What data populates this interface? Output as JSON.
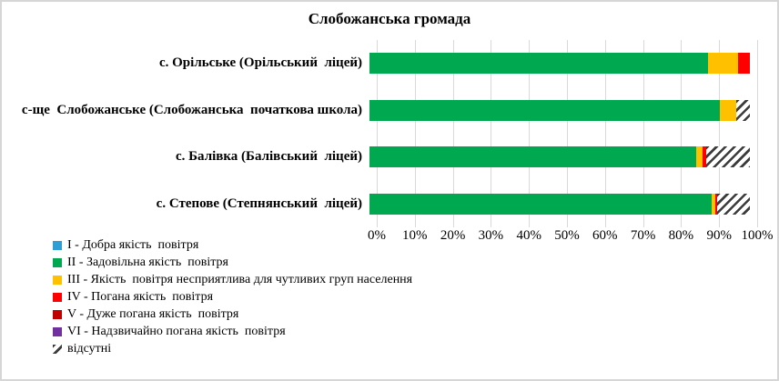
{
  "chart_data": {
    "type": "bar",
    "orientation": "horizontal",
    "stacked": true,
    "title": "Слобожанська громада",
    "categories": [
      "с. Орільське (Орільський  ліцей)",
      "с-ще  Слобожанське (Слобожанська  початкова школа)",
      "с. Балівка (Балівський  ліцей)",
      "с. Степове (Степнянський  ліцей)"
    ],
    "series": [
      {
        "name": "I - Добра якість  повітря",
        "color": "#2E9ED5",
        "values": [
          0,
          0,
          0,
          0
        ]
      },
      {
        "name": "II - Задовільна якість  повітря",
        "color": "#00A94F",
        "values": [
          89,
          92,
          86,
          90
        ]
      },
      {
        "name": "III - Якість  повітря несприятлива для чутливих груп населення",
        "color": "#FFC000",
        "values": [
          8,
          4.5,
          1.5,
          1
        ]
      },
      {
        "name": "IV - Погана якість  повітря",
        "color": "#FF0000",
        "values": [
          3,
          0,
          1,
          0.5
        ]
      },
      {
        "name": "V - Дуже погана якість  повітря",
        "color": "#C00000",
        "values": [
          0,
          0,
          0,
          0
        ]
      },
      {
        "name": "VI - Надзвичайно погана якість  повітря",
        "color": "#7030A0",
        "values": [
          0,
          0,
          0,
          0
        ]
      },
      {
        "name": "відсутні",
        "pattern": "diagonal-hatch",
        "color": "#3B3B3B",
        "values": [
          0,
          3.5,
          11.5,
          8.5
        ]
      }
    ],
    "x_ticks": [
      "0%",
      "10%",
      "20%",
      "30%",
      "40%",
      "50%",
      "60%",
      "70%",
      "80%",
      "90%",
      "100%"
    ],
    "xlim": [
      0,
      100
    ],
    "grid": "vertical",
    "legend_position": "bottom-left",
    "colors": {
      "grid": "#D9D9D9",
      "border": "#D6D6D6",
      "background": "#FFFFFF",
      "text": "#000000"
    }
  }
}
